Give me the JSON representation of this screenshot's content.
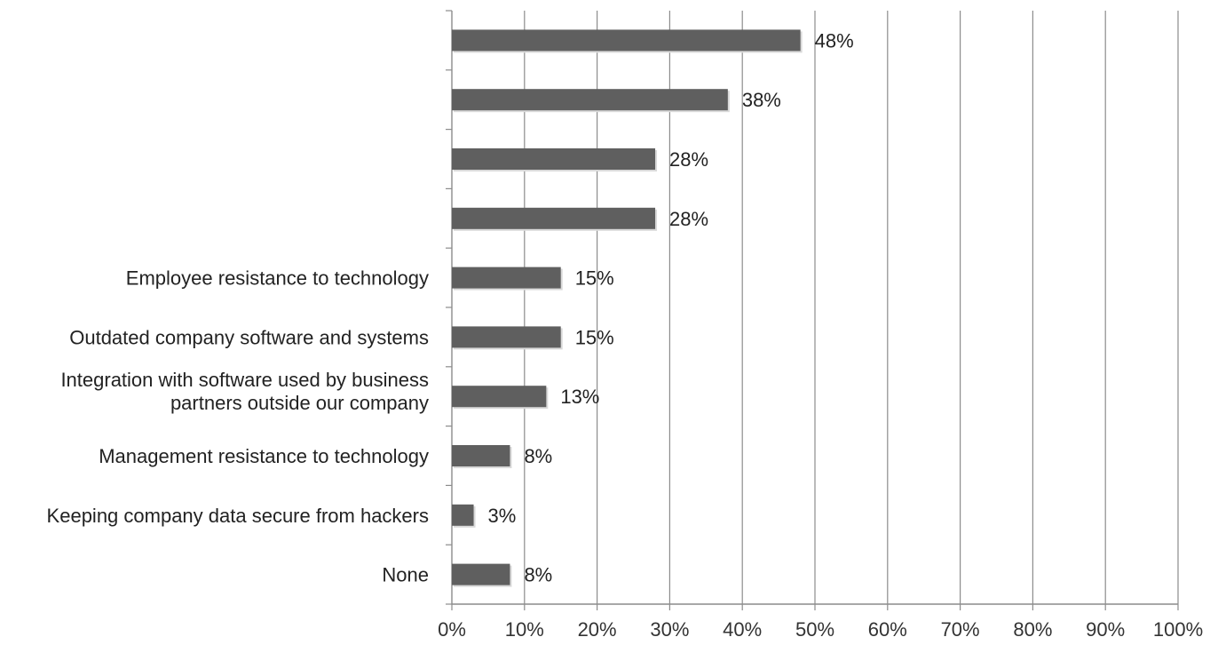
{
  "colors": {
    "bar": "#5f5f5f",
    "grid": "#8c8c8c",
    "axis": "#8c8c8c",
    "text": "#222222",
    "background": "#ffffff"
  },
  "chart_data": {
    "type": "bar",
    "orientation": "horizontal",
    "title": "",
    "xlabel": "",
    "ylabel": "",
    "xlim": [
      0,
      100
    ],
    "x_ticks": [
      0,
      10,
      20,
      30,
      40,
      50,
      60,
      70,
      80,
      90,
      100
    ],
    "x_tick_labels": [
      "0%",
      "10%",
      "20%",
      "30%",
      "40%",
      "50%",
      "60%",
      "70%",
      "80%",
      "90%",
      "100%"
    ],
    "grid": "vertical",
    "legend": "none",
    "categories": [
      "",
      "",
      "",
      "",
      "Employee resistance to technology",
      "Outdated company software and systems",
      "Integration with software used by business partners outside our company",
      "Management resistance to technology",
      "Keeping company data secure from hackers",
      "None"
    ],
    "category_label_lines": [
      [],
      [],
      [],
      [],
      [
        "Employee resistance to technology"
      ],
      [
        "Outdated company software and systems"
      ],
      [
        "Integration with software used by business",
        "partners outside our company"
      ],
      [
        "Management resistance to technology"
      ],
      [
        "Keeping company data secure from hackers"
      ],
      [
        "None"
      ]
    ],
    "values": [
      48,
      38,
      28,
      28,
      15,
      15,
      13,
      8,
      3,
      8
    ],
    "data_labels": [
      "48%",
      "38%",
      "28%",
      "28%",
      "15%",
      "15%",
      "13%",
      "8%",
      "3%",
      "8%"
    ]
  }
}
